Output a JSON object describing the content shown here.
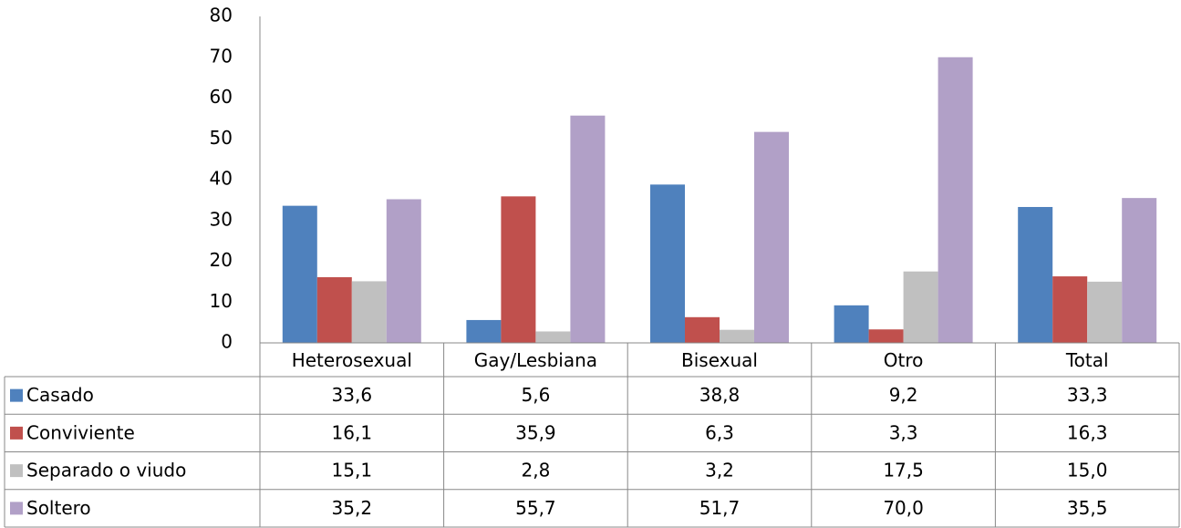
{
  "chart_data": {
    "type": "bar",
    "categories": [
      "Heterosexual",
      "Gay/Lesbiana",
      "Bisexual",
      "Otro",
      "Total"
    ],
    "series": [
      {
        "name": "Casado",
        "color": "#4f81bd",
        "values": [
          33.6,
          5.6,
          38.8,
          9.2,
          33.3
        ],
        "value_labels": [
          "33,6",
          "5,6",
          "38,8",
          "9,2",
          "33,3"
        ]
      },
      {
        "name": "Conviviente",
        "color": "#c0504d",
        "values": [
          16.1,
          35.9,
          6.3,
          3.3,
          16.3
        ],
        "value_labels": [
          "16,1",
          "35,9",
          "6,3",
          "3,3",
          "16,3"
        ]
      },
      {
        "name": "Separado o viudo",
        "color": "#c0c0c0",
        "values": [
          15.1,
          2.8,
          3.2,
          17.5,
          15.0
        ],
        "value_labels": [
          "15,1",
          "2,8",
          "3,2",
          "17,5",
          "15,0"
        ]
      },
      {
        "name": "Soltero",
        "color": "#b1a0c7",
        "values": [
          35.2,
          55.7,
          51.7,
          70.0,
          35.5
        ],
        "value_labels": [
          "35,2",
          "55,7",
          "51,7",
          "70,0",
          "35,5"
        ]
      }
    ],
    "ylim": [
      0,
      80
    ],
    "yticks": [
      0,
      10,
      20,
      30,
      40,
      50,
      60,
      70,
      80
    ]
  }
}
